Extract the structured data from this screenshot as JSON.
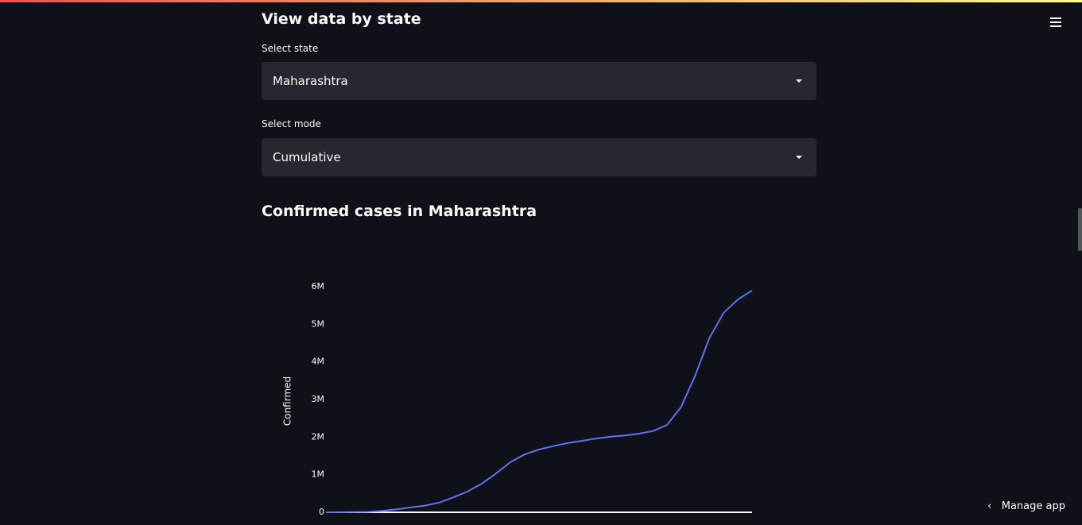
{
  "header": {
    "title": "View data by state"
  },
  "state_select": {
    "label": "Select state",
    "value": "Maharashtra"
  },
  "mode_select": {
    "label": "Select mode",
    "value": "Cumulative"
  },
  "chart_data": {
    "type": "line",
    "title": "Confirmed cases in Maharashtra",
    "y_label": "Confirmed",
    "values": [
      0,
      2000,
      8000,
      12000,
      40000,
      80000,
      130000,
      180000,
      260000,
      400000,
      560000,
      770000,
      1040000,
      1340000,
      1540000,
      1670000,
      1760000,
      1840000,
      1900000,
      1960000,
      2010000,
      2040000,
      2090000,
      2160000,
      2320000,
      2800000,
      3640000,
      4640000,
      5310000,
      5660000,
      5900000
    ],
    "color": "#636efa",
    "ylim": [
      0,
      6000000
    ],
    "yticks": [
      0,
      {
        "value": 1000000,
        "label": "1M"
      },
      {
        "value": 2000000,
        "label": "2M"
      },
      {
        "value": 3000000,
        "label": "3M"
      },
      {
        "value": 4000000,
        "label": "4M"
      },
      {
        "value": 5000000,
        "label": "5M"
      },
      {
        "value": 6000000,
        "label": "6M"
      }
    ]
  },
  "footer": {
    "manage_app": "Manage app"
  }
}
